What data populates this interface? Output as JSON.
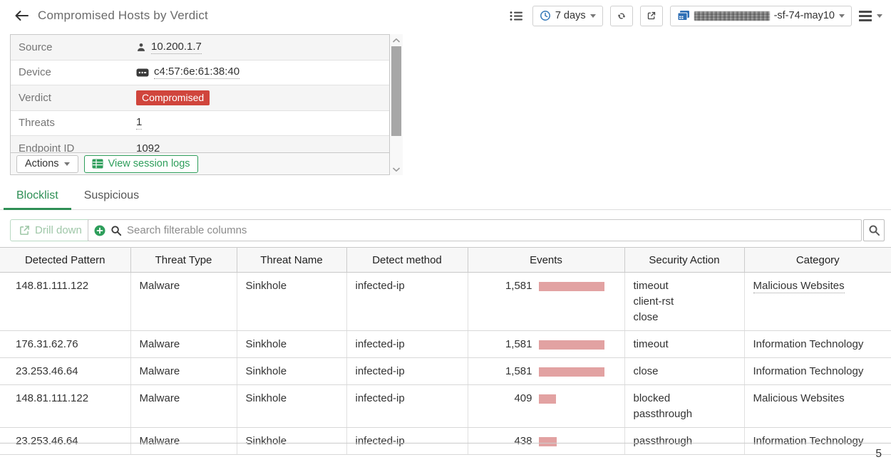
{
  "header": {
    "title": "Compromised Hosts by Verdict",
    "time_range_label": "7 days",
    "device_name_suffix": "-sf-74-may10"
  },
  "detail_panel": {
    "rows": [
      {
        "label": "Source",
        "value": "10.200.1.7",
        "icon": "user-icon",
        "underline": true,
        "badge": false
      },
      {
        "label": "Device",
        "value": "c4:57:6e:61:38:40",
        "icon": "mac-address-icon",
        "underline": true,
        "badge": false
      },
      {
        "label": "Verdict",
        "value": "Compromised",
        "icon": null,
        "underline": false,
        "badge": true
      },
      {
        "label": "Threats",
        "value": "1",
        "icon": null,
        "underline": true,
        "badge": false
      },
      {
        "label": "Endpoint ID",
        "value": "1092",
        "icon": null,
        "underline": false,
        "badge": false
      }
    ],
    "actions_label": "Actions",
    "view_session_logs_label": "View session logs"
  },
  "tabs": [
    {
      "label": "Blocklist",
      "active": true
    },
    {
      "label": "Suspicious",
      "active": false
    }
  ],
  "toolbar": {
    "drill_down_label": "Drill down",
    "search_placeholder": "Search filterable columns"
  },
  "table": {
    "columns": [
      "Detected Pattern",
      "Threat Type",
      "Threat Name",
      "Detect method",
      "Events",
      "Security Action",
      "Category"
    ],
    "events_max": 1581,
    "rows": [
      {
        "detected_pattern": "148.81.111.122",
        "threat_type": "Malware",
        "threat_name": "Sinkhole",
        "detect_method": "infected-ip",
        "events_label": "1,581",
        "events_value": 1581,
        "security_actions": [
          "timeout",
          "client-rst",
          "close"
        ],
        "category": "Malicious Websites",
        "category_link": true
      },
      {
        "detected_pattern": "176.31.62.76",
        "threat_type": "Malware",
        "threat_name": "Sinkhole",
        "detect_method": "infected-ip",
        "events_label": "1,581",
        "events_value": 1581,
        "security_actions": [
          "timeout"
        ],
        "category": "Information Technology",
        "category_link": false
      },
      {
        "detected_pattern": "23.253.46.64",
        "threat_type": "Malware",
        "threat_name": "Sinkhole",
        "detect_method": "infected-ip",
        "events_label": "1,581",
        "events_value": 1581,
        "security_actions": [
          "close"
        ],
        "category": "Information Technology",
        "category_link": false
      },
      {
        "detected_pattern": "148.81.111.122",
        "threat_type": "Malware",
        "threat_name": "Sinkhole",
        "detect_method": "infected-ip",
        "events_label": "409",
        "events_value": 409,
        "security_actions": [
          "blocked",
          "passthrough"
        ],
        "category": "Malicious Websites",
        "category_link": false
      },
      {
        "detected_pattern": "23.253.46.64",
        "threat_type": "Malware",
        "threat_name": "Sinkhole",
        "detect_method": "infected-ip",
        "events_label": "438",
        "events_value": 438,
        "security_actions": [
          "passthrough"
        ],
        "category": "Information Technology",
        "category_link": false
      }
    ]
  },
  "pagination": {
    "page": "5"
  },
  "colors": {
    "accent_green": "#2e9e5b",
    "tab_green": "#2e8f55",
    "disabled_green": "#9fc7a8",
    "badge_red": "#d0453c",
    "events_bar_pink": "#e2a2a2",
    "clock_blue": "#3579b8",
    "device_icon_blue": "#2f6fb5"
  }
}
